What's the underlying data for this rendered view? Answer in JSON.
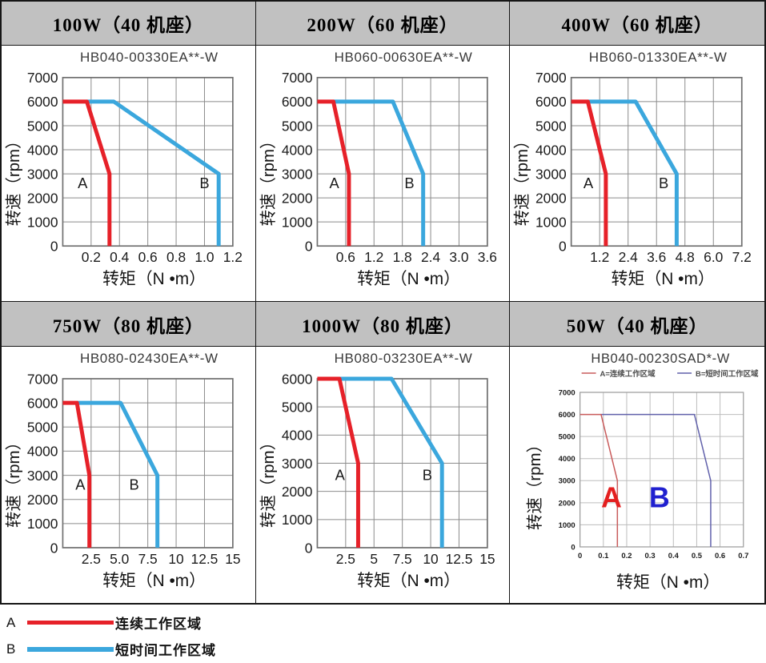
{
  "colors": {
    "red": "#e62129",
    "blue": "#3ba7dd",
    "mini_red": "#c95b5b",
    "mini_blue": "#6161ab",
    "big_a": "#e41f1f",
    "big_b": "#2020cf",
    "header_bg": "#c1c1c1",
    "grid": "#8b8b8b"
  },
  "legend": {
    "rows": [
      {
        "key": "A",
        "label": "连续工作区域",
        "color": "#e62129"
      },
      {
        "key": "B",
        "label": "短时间工作区域",
        "color": "#3ba7dd"
      }
    ]
  },
  "chart_data": [
    {
      "type": "line",
      "header": "100W（40 机座）",
      "title": "HB040-00330EA**-W",
      "variant": "std",
      "xlabel": "转矩（N •m）",
      "ylabel": "转速（rpm）",
      "xlim": [
        0,
        1.2
      ],
      "ylim": [
        0,
        7000
      ],
      "xticks": [
        0.2,
        0.4,
        0.6,
        0.8,
        1.0,
        1.2
      ],
      "xtick_labels": [
        "0.2",
        "0.4",
        "0.6",
        "0.8",
        "1.0",
        "1.2"
      ],
      "yticks": [
        0,
        1000,
        2000,
        3000,
        4000,
        5000,
        6000,
        7000
      ],
      "series": [
        {
          "name": "A 连续工作区域",
          "color": "red",
          "points": [
            [
              0,
              6000
            ],
            [
              0.17,
              6000
            ],
            [
              0.33,
              3000
            ],
            [
              0.33,
              0
            ]
          ]
        },
        {
          "name": "B 短时间工作区域",
          "color": "blue",
          "points": [
            [
              0.17,
              6000
            ],
            [
              0.36,
              6000
            ],
            [
              1.1,
              3000
            ],
            [
              1.1,
              0
            ]
          ]
        }
      ],
      "labels": [
        {
          "text": "A",
          "x": 0.14,
          "y": 2400
        },
        {
          "text": "B",
          "x": 1.0,
          "y": 2400
        }
      ]
    },
    {
      "type": "line",
      "header": "200W（60 机座）",
      "title": "HB060-00630EA**-W",
      "variant": "std",
      "xlabel": "转矩（N •m）",
      "ylabel": "转速（rpm）",
      "xlim": [
        0,
        3.6
      ],
      "ylim": [
        0,
        7000
      ],
      "xticks": [
        0.6,
        1.2,
        1.8,
        2.4,
        3.0,
        3.6
      ],
      "xtick_labels": [
        "0.6",
        "1.2",
        "1.8",
        "2.4",
        "3.0",
        "3.6"
      ],
      "yticks": [
        0,
        1000,
        2000,
        3000,
        4000,
        5000,
        6000,
        7000
      ],
      "series": [
        {
          "name": "A 连续工作区域",
          "color": "red",
          "points": [
            [
              0,
              6000
            ],
            [
              0.34,
              6000
            ],
            [
              0.67,
              3000
            ],
            [
              0.67,
              0
            ]
          ]
        },
        {
          "name": "B 短时间工作区域",
          "color": "blue",
          "points": [
            [
              0.34,
              6000
            ],
            [
              1.6,
              6000
            ],
            [
              2.24,
              3000
            ],
            [
              2.24,
              0
            ]
          ]
        }
      ],
      "labels": [
        {
          "text": "A",
          "x": 0.36,
          "y": 2400
        },
        {
          "text": "B",
          "x": 1.95,
          "y": 2400
        }
      ]
    },
    {
      "type": "line",
      "header": "400W（60 机座）",
      "title": "HB060-01330EA**-W",
      "variant": "std",
      "xlabel": "转矩（N •m）",
      "ylabel": "转速（rpm）",
      "xlim": [
        0,
        7.2
      ],
      "ylim": [
        0,
        7000
      ],
      "xticks": [
        1.2,
        2.4,
        3.6,
        4.8,
        6.0,
        7.2
      ],
      "xtick_labels": [
        "1.2",
        "2.4",
        "3.6",
        "4.8",
        "6.0",
        "7.2"
      ],
      "yticks": [
        0,
        1000,
        2000,
        3000,
        4000,
        5000,
        6000,
        7000
      ],
      "series": [
        {
          "name": "A 连续工作区域",
          "color": "red",
          "points": [
            [
              0,
              6000
            ],
            [
              0.7,
              6000
            ],
            [
              1.46,
              3000
            ],
            [
              1.46,
              0
            ]
          ]
        },
        {
          "name": "B 短时间工作区域",
          "color": "blue",
          "points": [
            [
              0.7,
              6000
            ],
            [
              2.72,
              6000
            ],
            [
              4.45,
              3000
            ],
            [
              4.45,
              0
            ]
          ]
        }
      ],
      "labels": [
        {
          "text": "A",
          "x": 0.72,
          "y": 2400
        },
        {
          "text": "B",
          "x": 3.9,
          "y": 2400
        }
      ]
    },
    {
      "type": "line",
      "header": "750W（80 机座）",
      "title": "HB080-02430EA**-W",
      "variant": "std",
      "xlabel": "转矩（N •m）",
      "ylabel": "转速（rpm）",
      "xlim": [
        0,
        15
      ],
      "ylim": [
        0,
        7000
      ],
      "xticks": [
        2.5,
        5.0,
        7.5,
        10,
        12.5,
        15
      ],
      "xtick_labels": [
        "2.5",
        "5.0",
        "7.5",
        "10",
        "12.5",
        "15"
      ],
      "yticks": [
        0,
        1000,
        2000,
        3000,
        4000,
        5000,
        6000,
        7000
      ],
      "series": [
        {
          "name": "A 连续工作区域",
          "color": "red",
          "points": [
            [
              0,
              6000
            ],
            [
              1.25,
              6000
            ],
            [
              2.35,
              3000
            ],
            [
              2.35,
              0
            ]
          ]
        },
        {
          "name": "B 短时间工作区域",
          "color": "blue",
          "points": [
            [
              1.25,
              6000
            ],
            [
              5.1,
              6000
            ],
            [
              8.35,
              3000
            ],
            [
              8.35,
              0
            ]
          ]
        }
      ],
      "labels": [
        {
          "text": "A",
          "x": 1.55,
          "y": 2400
        },
        {
          "text": "B",
          "x": 6.3,
          "y": 2400
        }
      ]
    },
    {
      "type": "line",
      "header": "1000W（80 机座）",
      "title": "HB080-03230EA**-W",
      "variant": "std",
      "xlabel": "转矩（N •m）",
      "ylabel": "转速（rpm）",
      "xlim": [
        0,
        15
      ],
      "ylim": [
        0,
        6000
      ],
      "xticks": [
        2.5,
        5,
        7.5,
        10,
        12.5,
        15
      ],
      "xtick_labels": [
        "2.5",
        "5",
        "7.5",
        "10",
        "12.5",
        "15"
      ],
      "yticks": [
        0,
        1000,
        2000,
        3000,
        4000,
        5000,
        6000
      ],
      "series": [
        {
          "name": "A 连续工作区域",
          "color": "red",
          "points": [
            [
              0,
              6000
            ],
            [
              1.95,
              6000
            ],
            [
              3.6,
              3000
            ],
            [
              3.6,
              0
            ]
          ]
        },
        {
          "name": "B 短时间工作区域",
          "color": "blue",
          "points": [
            [
              1.95,
              6000
            ],
            [
              6.55,
              6000
            ],
            [
              11,
              3000
            ],
            [
              11,
              0
            ]
          ]
        }
      ],
      "labels": [
        {
          "text": "A",
          "x": 2.0,
          "y": 2400
        },
        {
          "text": "B",
          "x": 9.7,
          "y": 2400
        }
      ]
    },
    {
      "type": "line",
      "header": "50W（40 机座）",
      "title": "HB040-00230SAD*-W",
      "variant": "mini",
      "xlabel": "转矩（N •m）",
      "ylabel": "转速（rpm）",
      "xlim": [
        0,
        0.7
      ],
      "ylim": [
        0,
        7000
      ],
      "xticks": [
        0,
        0.1,
        0.2,
        0.3,
        0.4,
        0.5,
        0.6,
        0.7
      ],
      "xtick_labels": [
        "0",
        "0.1",
        "0.2",
        "0.3",
        "0.4",
        "0.5",
        "0.6",
        "0.7"
      ],
      "yticks": [
        0,
        1000,
        2000,
        3000,
        4000,
        5000,
        6000,
        7000
      ],
      "mini_legend": [
        "A=连续工作区域",
        "B=短时间工作区域"
      ],
      "series": [
        {
          "name": "A 连续工作区域",
          "color": "mini_red",
          "points": [
            [
              0,
              6000
            ],
            [
              0.09,
              6000
            ],
            [
              0.16,
              3000
            ],
            [
              0.16,
              0
            ]
          ]
        },
        {
          "name": "B 短时间工作区域",
          "color": "mini_blue",
          "points": [
            [
              0.09,
              6000
            ],
            [
              0.49,
              6000
            ],
            [
              0.56,
              3000
            ],
            [
              0.56,
              0
            ]
          ]
        }
      ],
      "labels": [
        {
          "text": "A",
          "x": 0.135,
          "y": 1800,
          "color": "big_a"
        },
        {
          "text": "B",
          "x": 0.34,
          "y": 1800,
          "color": "big_b"
        }
      ]
    }
  ]
}
